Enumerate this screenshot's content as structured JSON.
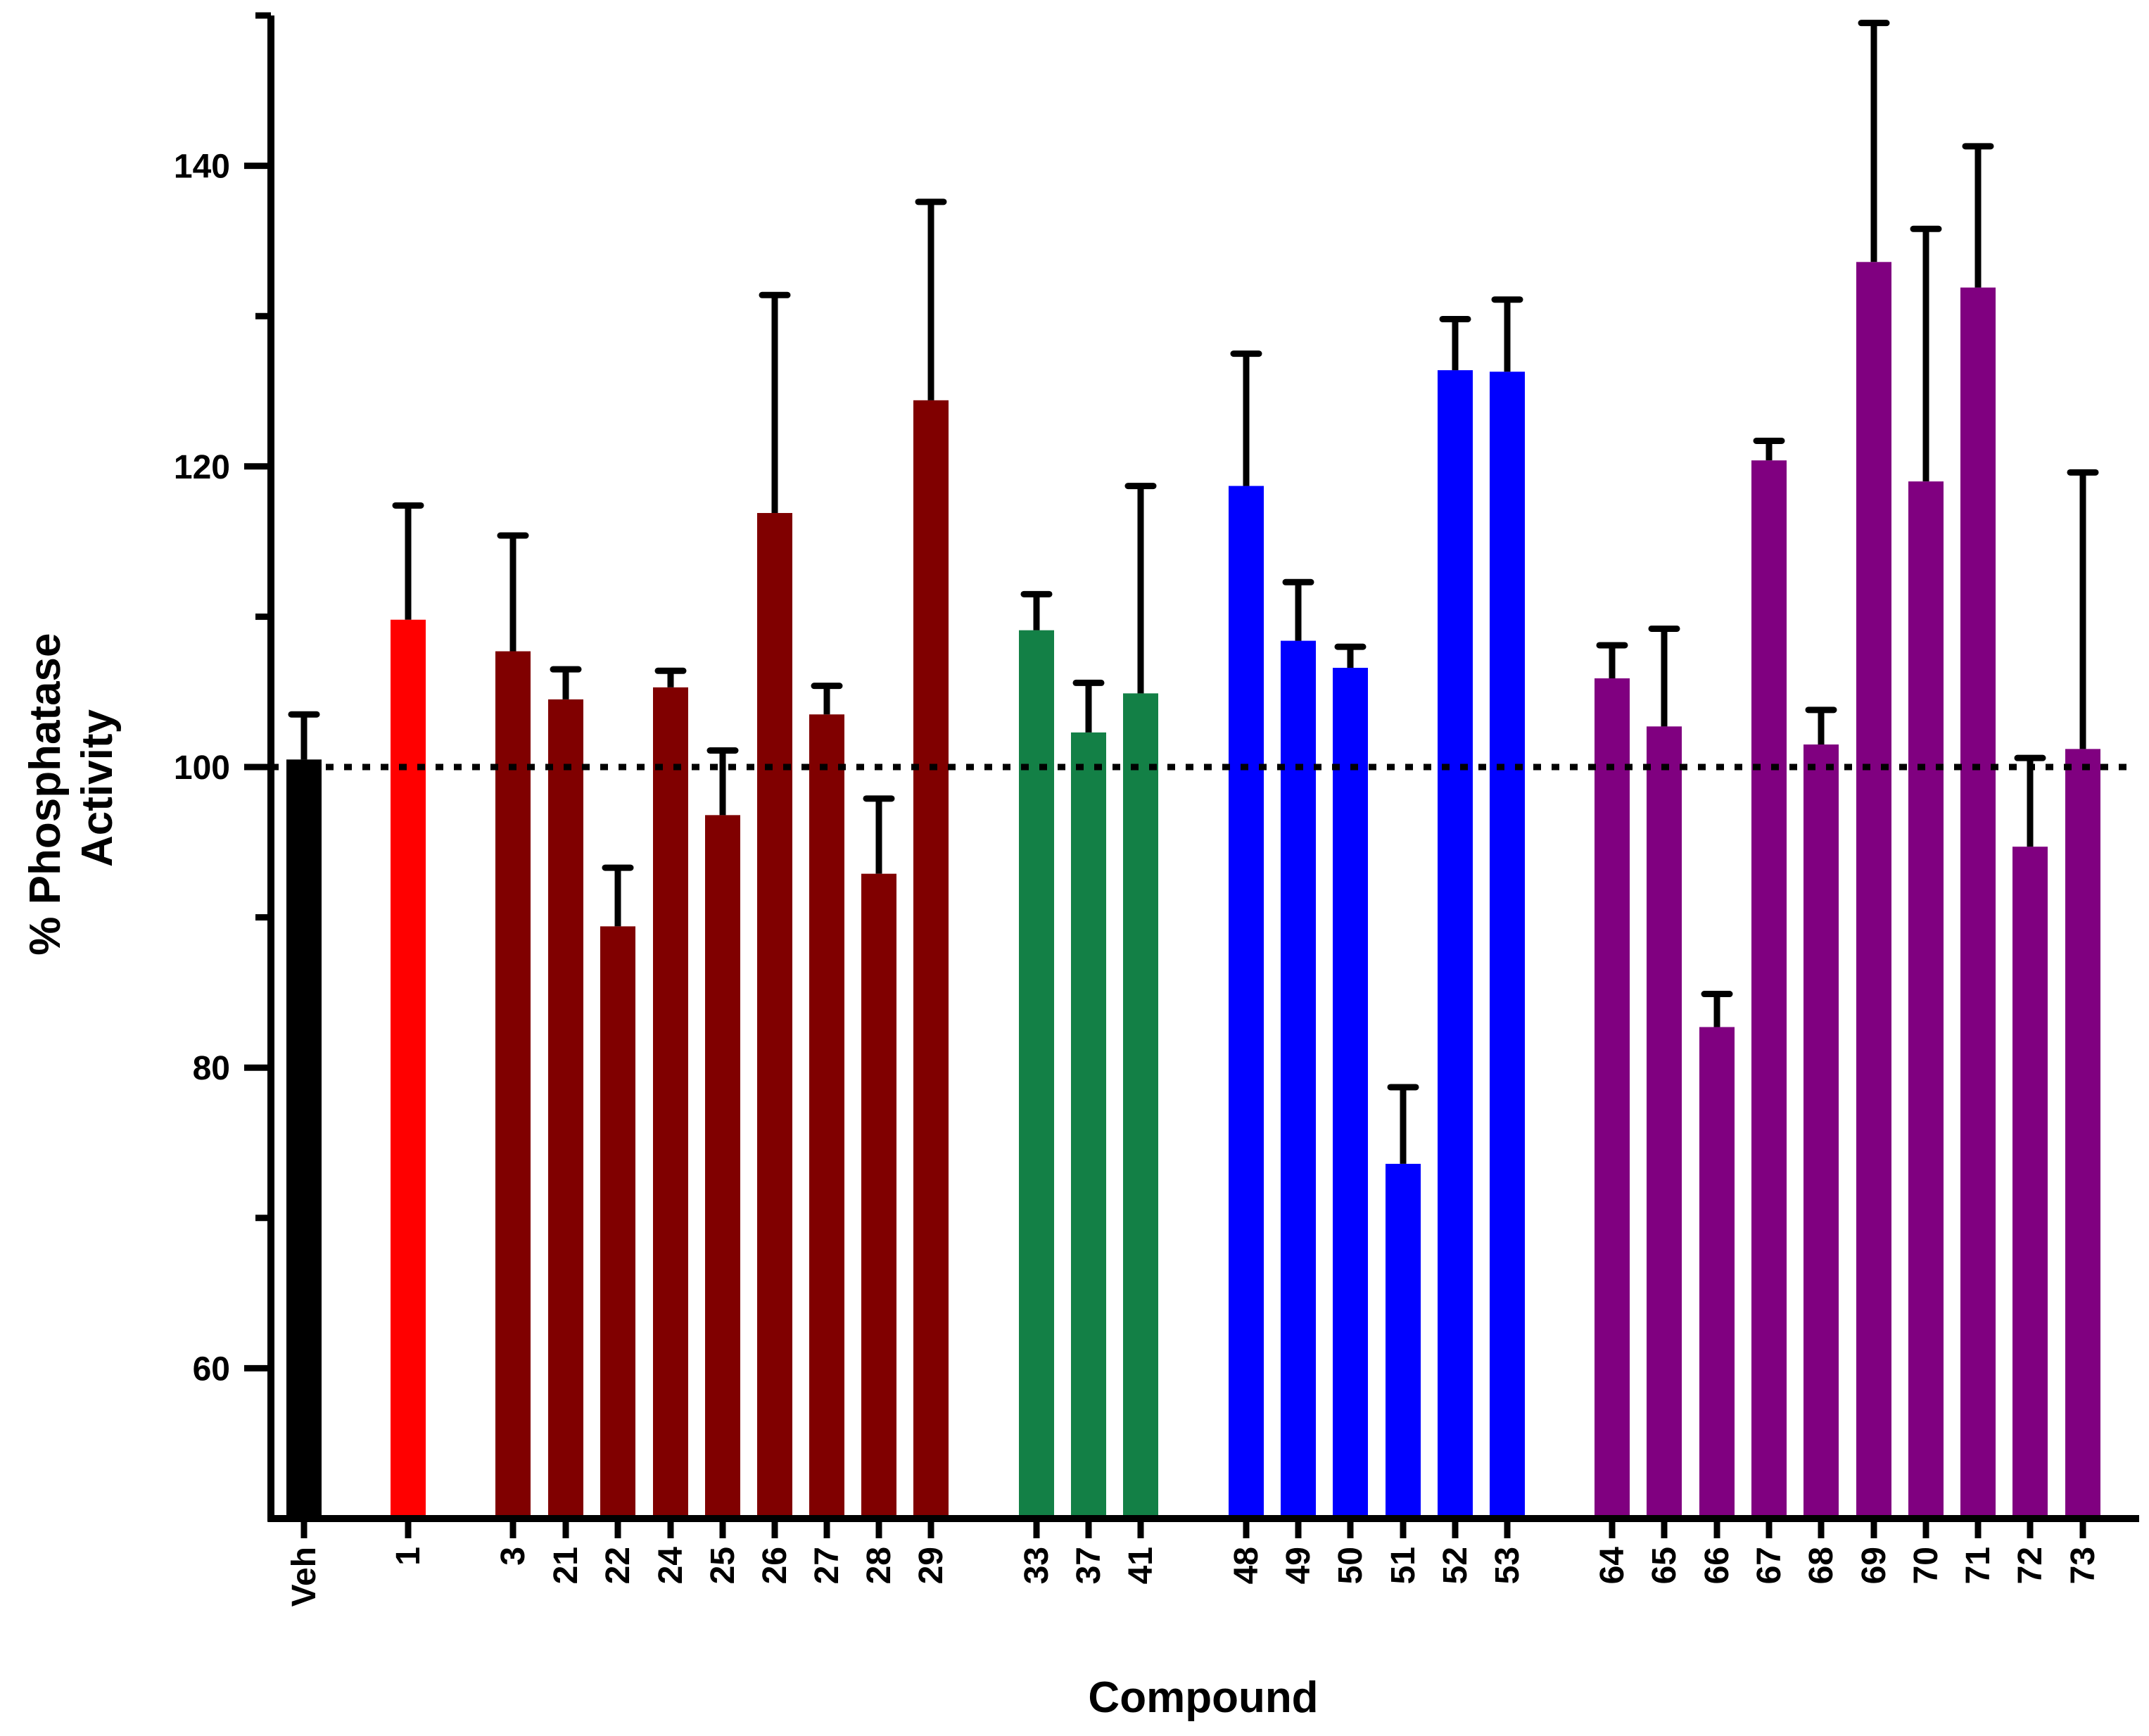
{
  "chart_data": {
    "type": "bar",
    "title": "",
    "xlabel": "Compound",
    "ylabel_line1": "% Phosphatase",
    "ylabel_line2": "Activity",
    "ylim": [
      50,
      150
    ],
    "yticks_major": [
      60,
      80,
      100,
      120,
      140
    ],
    "yticks_major_labels": [
      "60",
      "80",
      "100",
      "120",
      "140"
    ],
    "yticks_minor": [
      70,
      90,
      110,
      130,
      150
    ],
    "reference_line": 100,
    "colors": {
      "vehicle": "#000000",
      "parent": "#ff0000",
      "group1": "#800000",
      "group2": "#138046",
      "group3": "#0000ff",
      "group4": "#800080",
      "axis": "#000000"
    },
    "bars": [
      {
        "label": "Veh",
        "value": 100.5,
        "error": 3.0,
        "group": "vehicle"
      },
      {
        "label": "1",
        "value": 109.8,
        "error": 7.6,
        "group": "parent"
      },
      {
        "label": "3",
        "value": 107.7,
        "error": 7.7,
        "group": "group1"
      },
      {
        "label": "21",
        "value": 104.5,
        "error": 2.0,
        "group": "group1"
      },
      {
        "label": "22",
        "value": 89.4,
        "error": 3.9,
        "group": "group1"
      },
      {
        "label": "24",
        "value": 105.3,
        "error": 1.1,
        "group": "group1"
      },
      {
        "label": "25",
        "value": 96.8,
        "error": 4.3,
        "group": "group1"
      },
      {
        "label": "26",
        "value": 116.9,
        "error": 14.5,
        "group": "group1"
      },
      {
        "label": "27",
        "value": 103.5,
        "error": 1.9,
        "group": "group1"
      },
      {
        "label": "28",
        "value": 92.9,
        "error": 5.0,
        "group": "group1"
      },
      {
        "label": "29",
        "value": 124.4,
        "error": 13.2,
        "group": "group1"
      },
      {
        "label": "33",
        "value": 109.1,
        "error": 2.4,
        "group": "group2"
      },
      {
        "label": "37",
        "value": 102.3,
        "error": 3.3,
        "group": "group2"
      },
      {
        "label": "41",
        "value": 104.9,
        "error": 13.8,
        "group": "group2"
      },
      {
        "label": "48",
        "value": 118.7,
        "error": 8.8,
        "group": "group3"
      },
      {
        "label": "49",
        "value": 108.4,
        "error": 3.9,
        "group": "group3"
      },
      {
        "label": "50",
        "value": 106.6,
        "error": 1.4,
        "group": "group3"
      },
      {
        "label": "51",
        "value": 73.6,
        "error": 5.1,
        "group": "group3"
      },
      {
        "label": "52",
        "value": 126.4,
        "error": 3.4,
        "group": "group3"
      },
      {
        "label": "53",
        "value": 126.3,
        "error": 4.8,
        "group": "group3"
      },
      {
        "label": "64",
        "value": 105.9,
        "error": 2.2,
        "group": "group4"
      },
      {
        "label": "65",
        "value": 102.7,
        "error": 6.5,
        "group": "group4"
      },
      {
        "label": "66",
        "value": 82.7,
        "error": 2.2,
        "group": "group4"
      },
      {
        "label": "67",
        "value": 120.4,
        "error": 1.3,
        "group": "group4"
      },
      {
        "label": "68",
        "value": 101.5,
        "error": 2.3,
        "group": "group4"
      },
      {
        "label": "69",
        "value": 133.6,
        "error": 15.9,
        "group": "group4"
      },
      {
        "label": "70",
        "value": 119.0,
        "error": 16.8,
        "group": "group4"
      },
      {
        "label": "71",
        "value": 131.9,
        "error": 9.4,
        "group": "group4"
      },
      {
        "label": "72",
        "value": 94.7,
        "error": 5.9,
        "group": "group4"
      },
      {
        "label": "73",
        "value": 101.2,
        "error": 18.4,
        "group": "group4"
      }
    ]
  }
}
